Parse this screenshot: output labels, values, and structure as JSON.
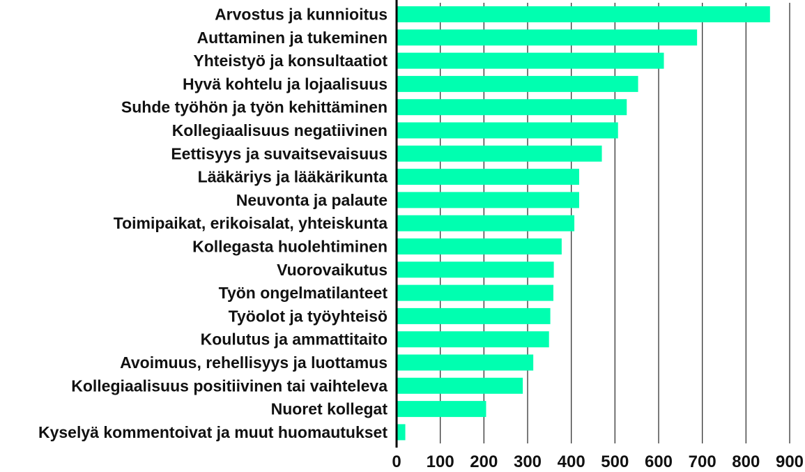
{
  "chart_data": {
    "type": "bar",
    "orientation": "horizontal",
    "title": "",
    "xlabel": "",
    "ylabel": "",
    "xlim": [
      0,
      900
    ],
    "x_ticks": [
      0,
      100,
      200,
      300,
      400,
      500,
      600,
      700,
      800,
      900
    ],
    "grid": true,
    "bar_color": "#00ffb0",
    "categories": [
      "Arvostus ja kunnioitus",
      "Auttaminen ja tukeminen",
      "Yhteistyö ja konsultaatiot",
      "Hyvä kohtelu ja lojaalisuus",
      "Suhde työhön ja työn kehittäminen",
      "Kollegiaalisuus negatiivinen",
      "Eettisyys ja suvaitsevaisuus",
      "Lääkäriys ja lääkärikunta",
      "Neuvonta ja palaute",
      "Toimipaikat, erikoisalat, yhteiskunta",
      "Kollegasta huolehtiminen",
      "Vuorovaikutus",
      "Työn ongelmatilanteet",
      "Työolot ja työyhteisö",
      "Koulutus ja ammattitaito",
      "Avoimuus, rehellisyys ja luottamus",
      "Kollegiaalisuus positiivinen tai vaihteleva",
      "Nuoret kollegat",
      "Kyselyä kommentoivat ja muut huomautukset"
    ],
    "values": [
      855,
      688,
      612,
      553,
      527,
      507,
      470,
      418,
      418,
      407,
      378,
      360,
      359,
      352,
      349,
      313,
      289,
      205,
      20
    ]
  }
}
